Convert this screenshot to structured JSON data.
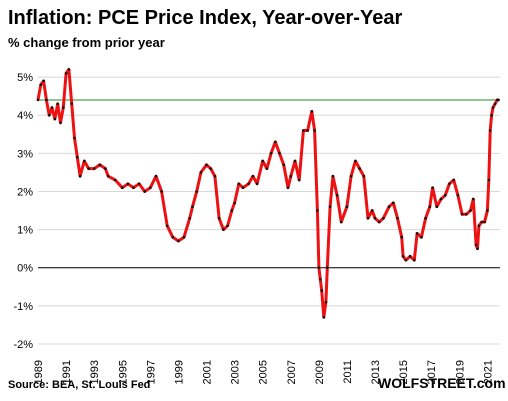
{
  "chart_data": {
    "type": "line",
    "title": "Inflation: PCE Price Index, Year-over-Year",
    "subtitle": "% change from prior year",
    "source": "Source: BEA, St. Louis Fed",
    "brand": "WOLFSTREET.com",
    "ylim": [
      -2,
      5.5
    ],
    "xlim": [
      1989.0,
      2021.9
    ],
    "yticks": [
      {
        "v": -2,
        "label": "-2%"
      },
      {
        "v": -1,
        "label": "-1%"
      },
      {
        "v": 0,
        "label": "0%"
      },
      {
        "v": 1,
        "label": "1%"
      },
      {
        "v": 2,
        "label": "2%"
      },
      {
        "v": 3,
        "label": "3%"
      },
      {
        "v": 4,
        "label": "4%"
      },
      {
        "v": 5,
        "label": "5%"
      }
    ],
    "xticks": [
      "1989",
      "1991",
      "1993",
      "1995",
      "1997",
      "1999",
      "2001",
      "2003",
      "2005",
      "2007",
      "2009",
      "2011",
      "2013",
      "2015",
      "2017",
      "2019",
      "2021"
    ],
    "grid": "horizontal",
    "reference_line": 4.4,
    "colors": {
      "line": "#ee1111",
      "marker": "#111111",
      "reference": "#2a8a2a",
      "zero": "#000000",
      "grid": "#d8d8d8"
    },
    "series": [
      {
        "x": [
          1989.0,
          1989.2,
          1989.4,
          1989.6,
          1989.8,
          1990.0,
          1990.2,
          1990.4,
          1990.6,
          1990.8,
          1991.0,
          1991.2,
          1991.4,
          1991.6,
          1991.8,
          1992.0,
          1992.3,
          1992.6,
          1993.0,
          1993.4,
          1993.8,
          1994.0,
          1994.5,
          1995.0,
          1995.4,
          1995.8,
          1996.2,
          1996.6,
          1997.0,
          1997.4,
          1997.8,
          1998.2,
          1998.6,
          1999.0,
          1999.4,
          1999.8,
          2000.0,
          2000.3,
          2000.6,
          2001.0,
          2001.3,
          2001.6,
          2001.9,
          2002.2,
          2002.5,
          2002.8,
          2003.0,
          2003.3,
          2003.6,
          2004.0,
          2004.3,
          2004.6,
          2005.0,
          2005.3,
          2005.6,
          2005.9,
          2006.2,
          2006.5,
          2006.8,
          2007.0,
          2007.3,
          2007.6,
          2007.9,
          2008.2,
          2008.5,
          2008.7,
          2008.9,
          2009.0,
          2009.1,
          2009.2,
          2009.35,
          2009.5,
          2009.6,
          2009.8,
          2010.0,
          2010.3,
          2010.6,
          2011.0,
          2011.3,
          2011.6,
          2011.9,
          2012.2,
          2012.5,
          2012.8,
          2013.0,
          2013.3,
          2013.6,
          2014.0,
          2014.3,
          2014.6,
          2014.9,
          2015.0,
          2015.2,
          2015.5,
          2015.8,
          2016.0,
          2016.3,
          2016.6,
          2016.9,
          2017.1,
          2017.4,
          2017.7,
          2018.0,
          2018.3,
          2018.6,
          2018.9,
          2019.2,
          2019.5,
          2019.8,
          2020.0,
          2020.2,
          2020.3,
          2020.4,
          2020.6,
          2020.8,
          2021.0,
          2021.1,
          2021.2,
          2021.3,
          2021.4,
          2021.55,
          2021.7,
          2021.8
        ],
        "values": [
          4.4,
          4.8,
          4.9,
          4.4,
          4.0,
          4.2,
          3.9,
          4.3,
          3.8,
          4.2,
          5.1,
          5.2,
          4.3,
          3.4,
          2.9,
          2.4,
          2.8,
          2.6,
          2.6,
          2.7,
          2.6,
          2.4,
          2.3,
          2.1,
          2.2,
          2.1,
          2.2,
          2.0,
          2.1,
          2.4,
          2.0,
          1.1,
          0.8,
          0.7,
          0.8,
          1.3,
          1.6,
          2.0,
          2.5,
          2.7,
          2.6,
          2.4,
          1.3,
          1.0,
          1.1,
          1.5,
          1.7,
          2.2,
          2.1,
          2.2,
          2.4,
          2.2,
          2.8,
          2.6,
          3.0,
          3.3,
          3.0,
          2.7,
          2.1,
          2.4,
          2.8,
          2.3,
          3.6,
          3.6,
          4.1,
          3.6,
          1.5,
          0.0,
          -0.3,
          -0.6,
          -1.3,
          -0.9,
          0.0,
          1.6,
          2.4,
          1.9,
          1.2,
          1.6,
          2.4,
          2.8,
          2.6,
          2.4,
          1.3,
          1.5,
          1.3,
          1.2,
          1.3,
          1.6,
          1.7,
          1.3,
          0.8,
          0.3,
          0.2,
          0.3,
          0.2,
          0.9,
          0.8,
          1.3,
          1.6,
          2.1,
          1.6,
          1.8,
          1.9,
          2.2,
          2.3,
          1.9,
          1.4,
          1.4,
          1.5,
          1.8,
          0.6,
          0.5,
          1.1,
          1.2,
          1.2,
          1.5,
          2.3,
          3.6,
          4.0,
          4.2,
          4.3,
          4.4,
          4.4
        ]
      }
    ]
  }
}
